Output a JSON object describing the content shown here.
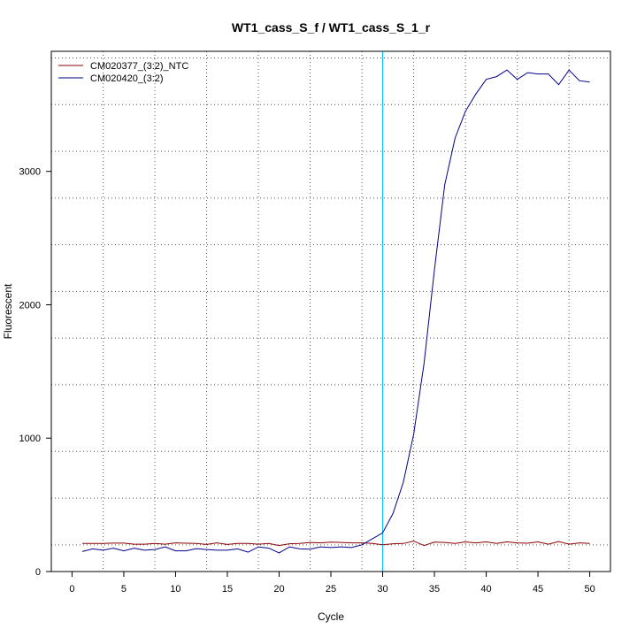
{
  "chart_data": {
    "type": "line",
    "title": "WT1_cass_S_f / WT1_cass_S_1_r",
    "xlabel": "Cycle",
    "ylabel": "Fluorescent",
    "xlim": [
      -2,
      52
    ],
    "ylim": [
      0,
      3900
    ],
    "x_ticks": [
      0,
      5,
      10,
      15,
      20,
      25,
      30,
      35,
      40,
      45,
      50
    ],
    "y_ticks": [
      0,
      1000,
      2000,
      3000
    ],
    "x_grid": [
      3,
      8,
      13,
      18,
      23,
      28,
      33,
      38,
      43,
      48
    ],
    "y_grid": [
      200,
      550,
      900,
      1400,
      1750,
      2100,
      2450,
      2800,
      3150,
      3500,
      3850
    ],
    "threshold_x": 30,
    "threshold_color": "#00bfff",
    "legend_position": "top-left",
    "series": [
      {
        "name": "CM020377_(3:2)_NTC",
        "color": "#8b0000",
        "x": [
          1,
          2,
          3,
          4,
          5,
          6,
          7,
          8,
          9,
          10,
          11,
          12,
          13,
          14,
          15,
          16,
          17,
          18,
          19,
          20,
          21,
          22,
          23,
          24,
          25,
          26,
          27,
          28,
          29,
          30,
          31,
          32,
          33,
          34,
          35,
          36,
          37,
          38,
          39,
          40,
          41,
          42,
          43,
          44,
          45,
          46,
          47,
          48,
          49,
          50
        ],
        "values": [
          210,
          210,
          210,
          213,
          213,
          205,
          205,
          210,
          205,
          215,
          212,
          210,
          203,
          215,
          203,
          210,
          210,
          205,
          210,
          195,
          208,
          210,
          218,
          215,
          220,
          218,
          215,
          215,
          210,
          200,
          208,
          210,
          228,
          195,
          220,
          218,
          210,
          222,
          215,
          222,
          210,
          222,
          215,
          212,
          222,
          205,
          225,
          205,
          215,
          210
        ]
      },
      {
        "name": "CM020420_(3:2)",
        "color": "#00008b",
        "x": [
          1,
          2,
          3,
          4,
          5,
          6,
          7,
          8,
          9,
          10,
          11,
          12,
          13,
          14,
          15,
          16,
          17,
          18,
          19,
          20,
          21,
          22,
          23,
          24,
          25,
          26,
          27,
          28,
          29,
          30,
          31,
          32,
          33,
          34,
          35,
          36,
          37,
          38,
          39,
          40,
          41,
          42,
          43,
          44,
          45,
          46,
          47,
          48,
          49,
          50
        ],
        "values": [
          150,
          170,
          160,
          175,
          155,
          175,
          160,
          165,
          185,
          155,
          155,
          172,
          165,
          160,
          160,
          170,
          145,
          185,
          175,
          140,
          185,
          170,
          168,
          185,
          180,
          185,
          180,
          200,
          245,
          290,
          435,
          670,
          1030,
          1560,
          2260,
          2900,
          3250,
          3450,
          3580,
          3690,
          3710,
          3760,
          3690,
          3740,
          3730,
          3730,
          3650,
          3760,
          3680,
          3670
        ]
      }
    ]
  }
}
